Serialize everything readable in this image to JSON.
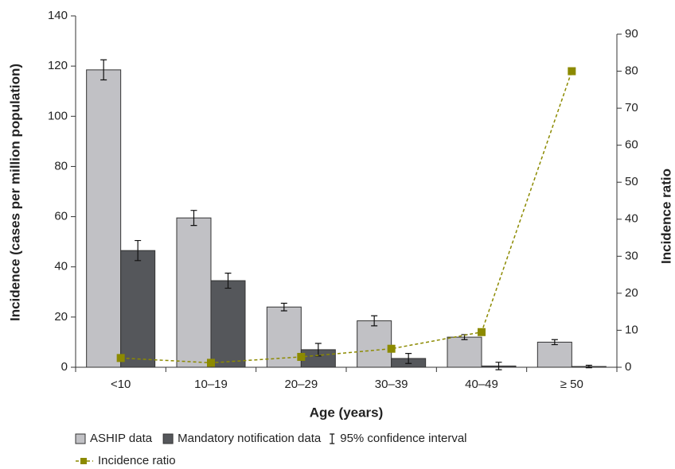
{
  "chart_data": {
    "type": "bar",
    "y_label": "Incidence (cases per million population)",
    "y2_label": "Incidence ratio",
    "x_label": "Age (years)",
    "categories": [
      "<10",
      "10–19",
      "20–29",
      "30–39",
      "40–49",
      "≥ 50"
    ],
    "series": [
      {
        "name": "ASHIP data",
        "color": "#c1c1c5",
        "values": [
          118.5,
          59.5,
          24,
          18.5,
          12,
          10
        ],
        "errors": [
          4,
          3,
          1.5,
          2,
          1,
          1
        ]
      },
      {
        "name": "Mandatory notification data",
        "color": "#55575b",
        "values": [
          46.5,
          34.5,
          7,
          3.5,
          0.5,
          0.3
        ],
        "errors": [
          4,
          3,
          2.5,
          2,
          1.5,
          0.5
        ]
      },
      {
        "name": "Incidence ratio",
        "type": "line",
        "axis": "y2",
        "color": "#8c8a00",
        "values": [
          2.5,
          1.2,
          2.8,
          5,
          9.5,
          80
        ]
      }
    ],
    "ci_label": "95% confidence interval",
    "ylim": [
      0,
      140
    ],
    "yticks": [
      0,
      20,
      40,
      60,
      80,
      100,
      120,
      140
    ],
    "y2lim": [
      0,
      90
    ],
    "y2ticks": [
      0,
      10,
      20,
      30,
      40,
      50,
      60,
      70,
      80,
      90
    ]
  }
}
